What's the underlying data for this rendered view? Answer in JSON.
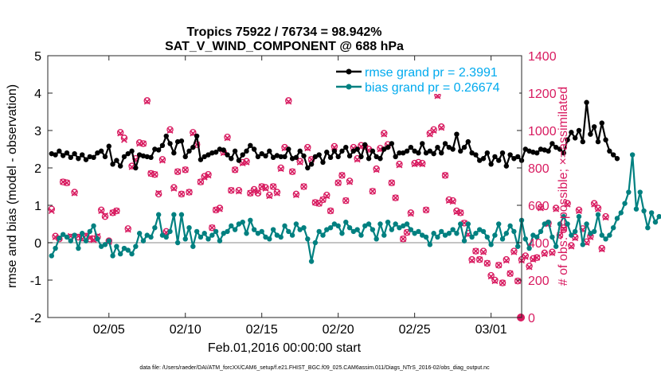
{
  "chart_data": {
    "type": "line",
    "title": "Tropics 75922 / 76734 = 98.942%",
    "subtitle": "SAT_V_WIND_COMPONENT @ 688 hPa",
    "xlabel": "Feb.01,2016 00:00:00 start",
    "ylabel_left": "rmse and bias (model - observation)",
    "ylabel_right": "# of obs: o=possible; ×=assimilated",
    "footnote": "data file: /Users/raeder/DAI/ATM_forcXX/CAM6_setup/f.e21.FHIST_BGC.f09_025.CAM6assim.011/Diags_NTrS_2016-02/obs_diag_output.nc",
    "xlim": [
      1,
      32
    ],
    "ylim_left": [
      -2,
      5
    ],
    "ylim_right": [
      0,
      1400
    ],
    "x_ticks": [
      5,
      10,
      15,
      20,
      25,
      30
    ],
    "x_tick_labels": [
      "02/05",
      "02/10",
      "02/15",
      "02/20",
      "02/25",
      "03/01"
    ],
    "y_ticks_left": [
      "-2",
      "-1",
      "0",
      "1",
      "2",
      "3",
      "4",
      "5"
    ],
    "y_ticks_right": [
      "0",
      "200",
      "400",
      "600",
      "800",
      "1000",
      "1200",
      "1400"
    ],
    "legend_position": "top-right",
    "colors": {
      "rmse": "#000000",
      "bias": "#008080",
      "obs": "#d81b60",
      "right_axis": "#d81b60",
      "legend_text": "#00aaee",
      "zero_line": "#b0b0b0"
    },
    "x_start": 1.25,
    "x_step": 0.25,
    "series": [
      {
        "name": "rmse grand pr = 2.3991",
        "axis": "left",
        "values": [
          2.38,
          2.35,
          2.45,
          2.33,
          2.4,
          2.28,
          2.38,
          2.25,
          2.35,
          2.22,
          2.3,
          2.28,
          2.4,
          2.45,
          2.3,
          2.58,
          2.1,
          2.2,
          2.05,
          2.3,
          2.38,
          2.45,
          2.0,
          2.35,
          2.32,
          2.3,
          2.28,
          2.5,
          2.48,
          2.6,
          2.85,
          2.65,
          2.4,
          2.7,
          2.72,
          2.3,
          2.45,
          2.55,
          2.85,
          2.22,
          2.3,
          2.35,
          2.4,
          2.42,
          2.5,
          2.48,
          2.35,
          2.25,
          2.45,
          2.2,
          2.35,
          2.45,
          2.6,
          2.5,
          2.3,
          2.38,
          2.32,
          2.45,
          2.28,
          2.33,
          2.3,
          2.3,
          2.5,
          2.25,
          2.28,
          2.45,
          2.32,
          2.0,
          2.1,
          2.3,
          2.35,
          2.15,
          2.42,
          2.28,
          2.45,
          2.3,
          2.45,
          2.55,
          2.32,
          2.45,
          2.5,
          2.3,
          2.62,
          2.25,
          2.45,
          2.3,
          2.25,
          2.5,
          2.55,
          2.65,
          2.3,
          2.4,
          2.4,
          2.45,
          2.55,
          2.45,
          2.4,
          2.65,
          2.4,
          2.45,
          2.38,
          2.55,
          2.4,
          2.65,
          2.55,
          2.5,
          2.9,
          2.45,
          2.55,
          2.7,
          2.4,
          2.35,
          2.2,
          2.25,
          2.4,
          2.1,
          2.3,
          2.2,
          2.4,
          2.05,
          2.35,
          2.25,
          2.3,
          2.2,
          2.5,
          2.45,
          2.42,
          2.4,
          2.5,
          2.48,
          2.45,
          2.65,
          2.55,
          2.5,
          2.4,
          2.75,
          2.95,
          2.8,
          3.0,
          2.7,
          3.75,
          2.9,
          3.1,
          2.7,
          3.2,
          2.75,
          2.45,
          2.35,
          2.25
        ]
      },
      {
        "name": "bias grand pr = 0.26674",
        "axis": "left",
        "values": [
          -0.35,
          -0.15,
          0.12,
          0.22,
          0.15,
          0.05,
          0.2,
          -0.15,
          0.25,
          0.05,
          0.3,
          0.45,
          0.1,
          -0.1,
          -0.05,
          0.05,
          -0.35,
          -0.1,
          -0.3,
          -0.15,
          -0.2,
          -0.3,
          -0.1,
          0.25,
          0.05,
          0.2,
          0.15,
          0.4,
          0.75,
          0.2,
          0.15,
          0.3,
          0.75,
          0.0,
          0.75,
          0.1,
          0.4,
          -0.1,
          0.3,
          0.15,
          0.25,
          0.1,
          0.2,
          0.3,
          0.05,
          0.25,
          0.3,
          0.45,
          0.35,
          0.5,
          0.55,
          0.25,
          0.6,
          0.35,
          0.25,
          0.3,
          0.15,
          0.1,
          0.35,
          0.2,
          0.15,
          0.45,
          0.3,
          0.2,
          0.5,
          0.35,
          0.4,
          0.1,
          -0.5,
          0.0,
          0.3,
          0.2,
          0.35,
          0.4,
          0.5,
          0.45,
          0.25,
          0.55,
          0.4,
          0.3,
          0.35,
          0.2,
          0.45,
          0.5,
          0.35,
          0.1,
          0.5,
          0.2,
          0.55,
          0.35,
          0.5,
          0.4,
          0.45,
          0.5,
          0.35,
          0.25,
          0.3,
          0.2,
          0.15,
          -0.05,
          0.25,
          0.15,
          0.3,
          0.2,
          0.25,
          0.35,
          0.25,
          0.5,
          0.05,
          0.5,
          0.15,
          0.25,
          0.35,
          0.3,
          0.15,
          -0.05,
          0.2,
          0.5,
          0.1,
          0.25,
          0.45,
          0.3,
          -0.1,
          0.6,
          0.1,
          -0.15,
          0.2,
          0.15,
          0.3,
          0.5,
          0.55,
          0.15,
          -0.1,
          0.5,
          0.7,
          0.5,
          0.2,
          0.3,
          0.7,
          -0.05,
          0.5,
          0.25,
          0.3,
          0.75,
          0.2,
          0.1,
          0.2,
          0.4,
          0.65,
          0.8,
          1.05,
          1.35,
          2.35,
          0.9,
          1.35,
          0.85,
          0.4,
          0.8,
          0.55,
          0.7
        ]
      },
      {
        "name": "possible observations",
        "axis": "right",
        "values": [
          580,
          435,
          420,
          725,
          720,
          430,
          670,
          430,
          425,
          435,
          420,
          420,
          430,
          575,
          540,
          410,
          560,
          570,
          990,
          960,
          475,
          810,
          850,
          935,
          930,
          1160,
          770,
          765,
          660,
          845,
          460,
          1005,
          695,
          780,
          660,
          790,
          670,
          990,
          925,
          725,
          755,
          765,
          480,
          575,
          585,
          885,
          965,
          680,
          790,
          680,
          830,
          835,
          665,
          685,
          665,
          700,
          695,
          655,
          700,
          670,
          800,
          910,
          1160,
          780,
          660,
          835,
          700,
          910,
          845,
          615,
          610,
          630,
          655,
          570,
          915,
          720,
          760,
          625,
          730,
          910,
          850,
          920,
          915,
          900,
          675,
          795,
          905,
          985,
          925,
          720,
          640,
          820,
          420,
          455,
          560,
          825,
          830,
          825,
          575,
          985,
          1005,
          1190,
          1020,
          760,
          630,
          625,
          570,
          560,
          505,
          450,
          310,
          355,
          310,
          355,
          290,
          225,
          200,
          280,
          185,
          310,
          235,
          355,
          195,
          310,
          330,
          275,
          315,
          320,
          590,
          345,
          505,
          350,
          585,
          440,
          480,
          610,
          385,
          430,
          575,
          475,
          405,
          435,
          610,
          585,
          370,
          540
        ]
      },
      {
        "name": "assimilated observations",
        "axis": "right",
        "values": [
          570,
          430,
          425,
          725,
          720,
          435,
          665,
          435,
          420,
          440,
          425,
          415,
          435,
          570,
          545,
          405,
          560,
          570,
          985,
          950,
          470,
          805,
          845,
          930,
          930,
          1155,
          770,
          765,
          665,
          840,
          455,
          1000,
          690,
          780,
          660,
          790,
          670,
          985,
          925,
          725,
          750,
          760,
          480,
          575,
          580,
          880,
          960,
          680,
          790,
          675,
          825,
          830,
          665,
          680,
          670,
          700,
          690,
          650,
          700,
          665,
          795,
          905,
          1155,
          780,
          655,
          830,
          700,
          905,
          845,
          615,
          610,
          630,
          650,
          570,
          910,
          720,
          760,
          625,
          725,
          905,
          845,
          915,
          910,
          895,
          675,
          790,
          900,
          980,
          920,
          720,
          640,
          815,
          420,
          455,
          555,
          820,
          825,
          820,
          575,
          980,
          1000,
          1185,
          1015,
          760,
          625,
          620,
          565,
          560,
          505,
          445,
          305,
          355,
          310,
          350,
          290,
          220,
          195,
          280,
          185,
          305,
          235,
          350,
          195,
          305,
          325,
          270,
          310,
          320,
          585,
          340,
          500,
          345,
          580,
          440,
          475,
          605,
          380,
          425,
          570,
          470,
          400,
          430,
          605,
          580,
          365,
          535
        ]
      }
    ],
    "extra_points": [
      {
        "name": "possible observations",
        "x": 31.95,
        "y": 0
      }
    ]
  }
}
